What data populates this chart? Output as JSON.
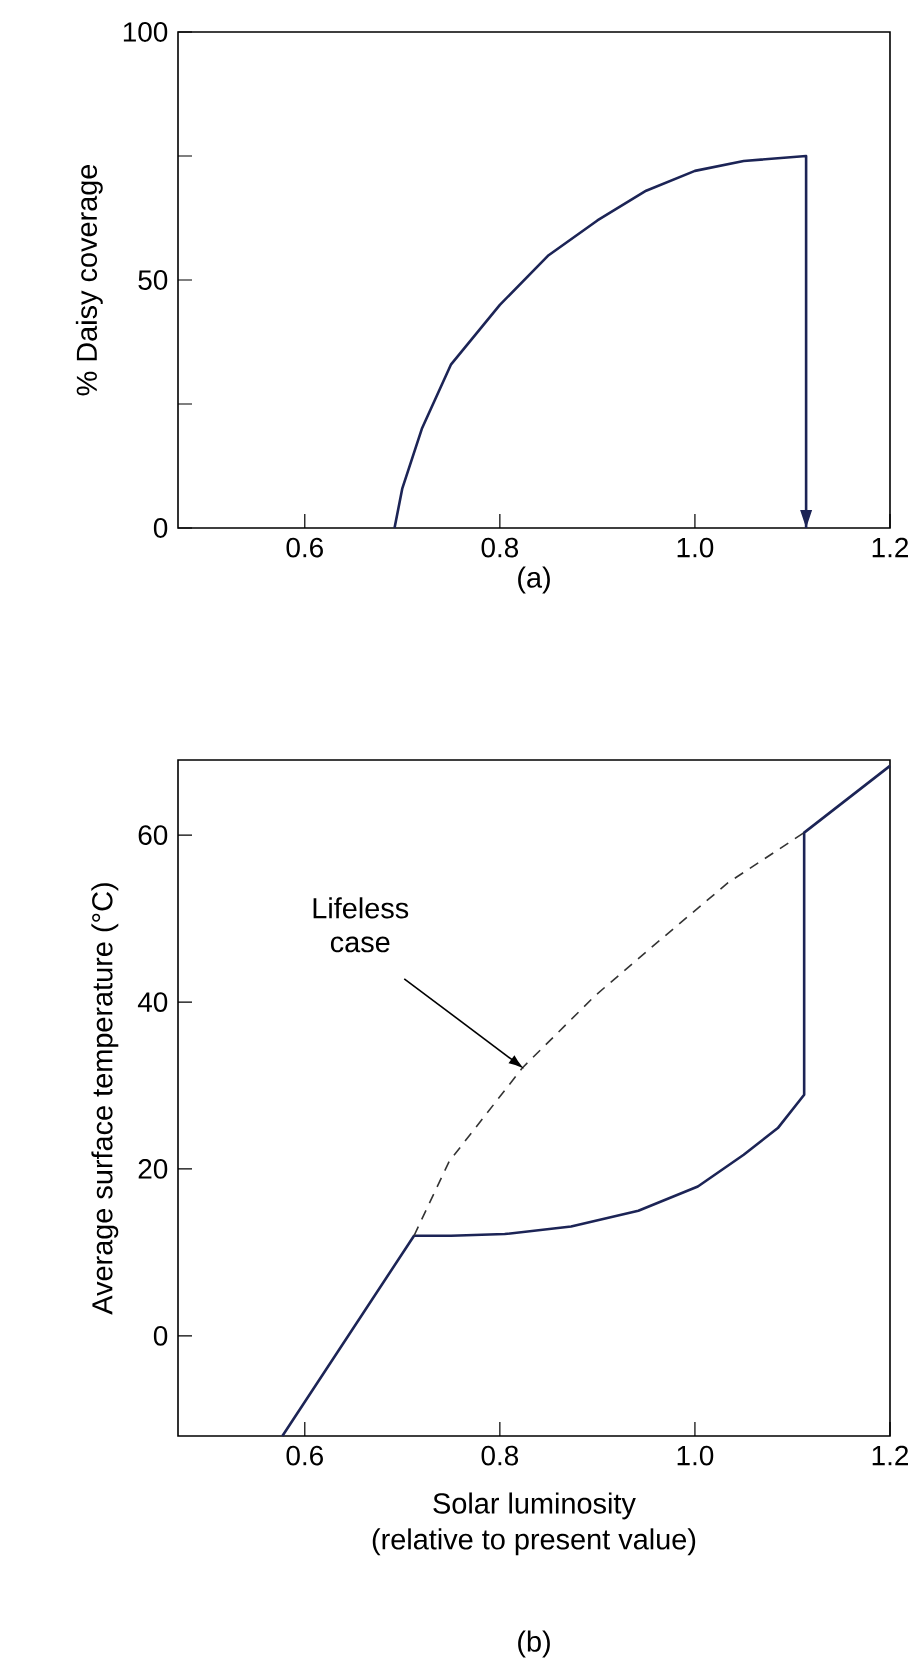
{
  "chart_data": [
    {
      "type": "line",
      "ylabel": "% Daisy coverage",
      "annotations": [
        "(a)"
      ],
      "xlim": [
        0.47,
        1.2
      ],
      "ylim": [
        0,
        100
      ],
      "xticks": [
        0.6,
        0.8,
        {
          "value": 1.0,
          "label": "1.0"
        },
        1.2
      ],
      "yticks": [
        0,
        {
          "value": 25,
          "label": null
        },
        50,
        {
          "value": 75,
          "label": null
        },
        100
      ],
      "marker": "none",
      "series": [
        {
          "color": "#1c2456",
          "line_style": "solid",
          "x": [
            0.692,
            0.7,
            0.72,
            0.75,
            0.8,
            0.85,
            0.9,
            0.95,
            1.0,
            1.05,
            1.114,
            1.114
          ],
          "values": [
            0,
            8,
            20,
            33,
            45,
            55,
            62,
            68,
            72,
            74,
            75,
            0
          ]
        }
      ]
    },
    {
      "type": "line",
      "xlabel": "Solar luminosity (relative to present value)",
      "ylabel": "Average surface temperature (°C)",
      "annotations": [
        {
          "text": "Lifeless case",
          "x": 0.825,
          "y": 32
        },
        "(b)"
      ],
      "xlim": [
        0.47,
        1.2
      ],
      "ylim": [
        -12,
        69
      ],
      "xticks": [
        0.6,
        0.8,
        {
          "value": 1.0,
          "label": "1.0"
        },
        1.2
      ],
      "yticks": [
        0,
        20,
        40,
        60
      ],
      "marker": "none",
      "series": [
        {
          "color": "#1c2456",
          "line_style": "solid",
          "x": [
            0.577,
            0.712,
            0.75,
            0.805,
            0.873,
            0.942,
            1.003,
            1.05,
            1.085,
            1.112,
            1.112,
            1.2
          ],
          "values": [
            -12,
            12,
            12,
            12.2,
            13.1,
            15,
            17.9,
            21.7,
            24.9,
            28.9,
            60.3,
            68.3
          ]
        },
        {
          "color": "#333333",
          "line_style": "dashed",
          "x": [
            0.712,
            0.748,
            0.823,
            0.898,
            0.966,
            1.034,
            1.112
          ],
          "values": [
            12,
            20.9,
            32.1,
            40.8,
            47.6,
            54.3,
            60.3
          ]
        }
      ]
    }
  ]
}
